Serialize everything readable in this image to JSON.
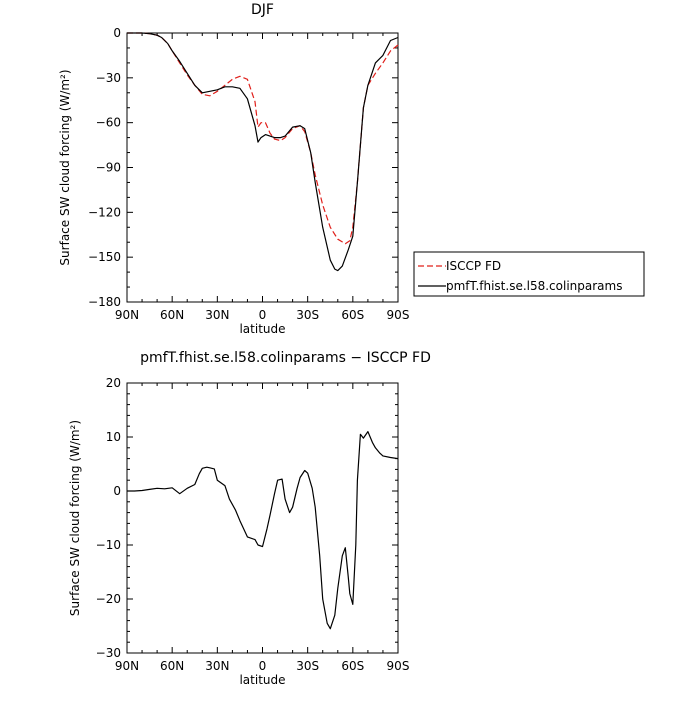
{
  "chart_data": [
    {
      "type": "line",
      "title": "DJF",
      "xlabel": "latitude",
      "ylabel": "Surface SW cloud forcing (W/m²)",
      "xlim": [
        90,
        -90
      ],
      "ylim": [
        -180,
        0
      ],
      "xticks": [
        90,
        60,
        30,
        0,
        -30,
        -60,
        -90
      ],
      "xtick_labels": [
        "90N",
        "60N",
        "30N",
        "0",
        "30S",
        "60S",
        "90S"
      ],
      "yticks": [
        0,
        -30,
        -60,
        -90,
        -120,
        -150,
        -180
      ],
      "ytick_labels": [
        "0",
        "−30",
        "−60",
        "−90",
        "−120",
        "−150",
        "−180"
      ],
      "grid": false,
      "legend_position": "outside-right",
      "series": [
        {
          "name": "ISCCP FD",
          "color": "#e0201b",
          "dash": "dashed",
          "x": [
            90,
            85,
            80,
            75,
            70,
            67,
            63,
            60,
            55,
            50,
            45,
            40,
            35,
            30,
            25,
            20,
            15,
            10,
            5,
            3,
            1,
            -2,
            -5,
            -8,
            -12,
            -15,
            -20,
            -25,
            -28,
            -32,
            -35,
            -40,
            -45,
            -50,
            -55,
            -58,
            -60,
            -63,
            -67,
            -70,
            -75,
            -80,
            -85,
            -90
          ],
          "y": [
            0,
            0,
            0,
            -0.5,
            -1.5,
            -3,
            -7,
            -12,
            -20,
            -28,
            -35,
            -41,
            -42,
            -39,
            -35,
            -31,
            -29,
            -31,
            -46,
            -63,
            -60,
            -60,
            -67,
            -71,
            -72,
            -70,
            -64,
            -62,
            -66,
            -80,
            -95,
            -115,
            -130,
            -138,
            -141,
            -139,
            -130,
            -100,
            -50,
            -35,
            -27,
            -20,
            -12,
            -8
          ]
        },
        {
          "name": "pmfT.fhist.se.l58.colinparams",
          "color": "#000000",
          "dash": "solid",
          "x": [
            90,
            85,
            80,
            75,
            70,
            67,
            63,
            60,
            55,
            50,
            45,
            40,
            35,
            30,
            25,
            22,
            20,
            15,
            10,
            5,
            3,
            1,
            -2,
            -5,
            -8,
            -12,
            -15,
            -20,
            -25,
            -28,
            -32,
            -35,
            -40,
            -45,
            -48,
            -50,
            -53,
            -57,
            -60,
            -63,
            -67,
            -70,
            -75,
            -80,
            -85,
            -90
          ],
          "y": [
            0,
            0,
            0,
            -0.5,
            -1.5,
            -3,
            -7,
            -12,
            -19,
            -27,
            -35,
            -40,
            -39,
            -38,
            -36,
            -36,
            -36,
            -37,
            -44,
            -62,
            -73,
            -70,
            -68,
            -69,
            -70,
            -70,
            -69,
            -63,
            -62,
            -64,
            -80,
            -100,
            -130,
            -152,
            -158,
            -159,
            -156,
            -145,
            -136,
            -100,
            -50,
            -35,
            -20,
            -15,
            -5,
            -3
          ]
        }
      ]
    },
    {
      "type": "line",
      "title": "pmfT.fhist.se.l58.colinparams − ISCCP FD",
      "xlabel": "latitude",
      "ylabel": "Surface SW cloud forcing (W/m²)",
      "xlim": [
        90,
        -90
      ],
      "ylim": [
        -30,
        20
      ],
      "xticks": [
        90,
        60,
        30,
        0,
        -30,
        -60,
        -90
      ],
      "xtick_labels": [
        "90N",
        "60N",
        "30N",
        "0",
        "30S",
        "60S",
        "90S"
      ],
      "yticks": [
        20,
        10,
        0,
        -10,
        -20,
        -30
      ],
      "ytick_labels": [
        "20",
        "10",
        "0",
        "−10",
        "−20",
        "−30"
      ],
      "grid": false,
      "series": [
        {
          "color": "#000000",
          "dash": "solid",
          "x": [
            90,
            85,
            80,
            75,
            70,
            65,
            60,
            55,
            50,
            45,
            42,
            40,
            37,
            35,
            32,
            30,
            25,
            22,
            18,
            15,
            10,
            5,
            3,
            0,
            -3,
            -5,
            -8,
            -10,
            -13,
            -15,
            -18,
            -20,
            -23,
            -25,
            -28,
            -30,
            -33,
            -35,
            -38,
            -40,
            -43,
            -45,
            -48,
            -50,
            -53,
            -55,
            -57,
            -58,
            -60,
            -62,
            -63,
            -65,
            -67,
            -70,
            -73,
            -75,
            -78,
            -80,
            -85,
            -90
          ],
          "y": [
            0,
            0,
            0.1,
            0.3,
            0.5,
            0.4,
            0.6,
            -0.5,
            0.5,
            1.2,
            3.2,
            4.2,
            4.4,
            4.3,
            4.1,
            2.0,
            1.0,
            -1.5,
            -3.5,
            -5.5,
            -8.5,
            -9.0,
            -10.0,
            -10.3,
            -7.0,
            -4.5,
            -0.5,
            2.0,
            2.2,
            -1.5,
            -4.0,
            -3.0,
            0.5,
            2.5,
            3.8,
            3.3,
            0.5,
            -3.0,
            -12.0,
            -20.0,
            -24.5,
            -25.5,
            -23.0,
            -18.0,
            -12.0,
            -10.5,
            -16.0,
            -19.0,
            -21.0,
            -10.0,
            2.0,
            10.5,
            9.8,
            11.0,
            9.0,
            8.0,
            7.0,
            6.5,
            6.2,
            6.0
          ]
        }
      ]
    }
  ]
}
